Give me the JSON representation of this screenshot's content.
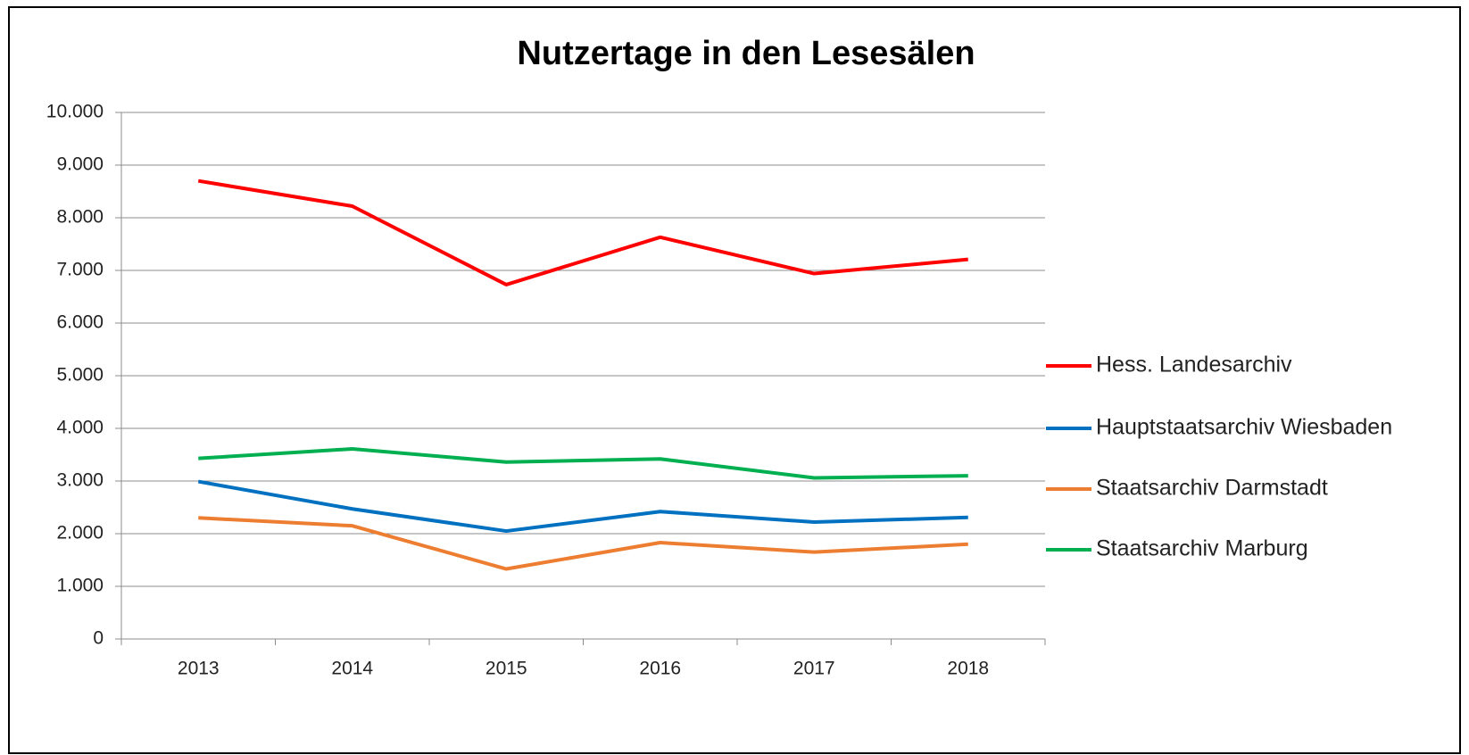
{
  "chart_data": {
    "type": "line",
    "title": "Nutzertage in den Lesesälen",
    "categories": [
      "2013",
      "2014",
      "2015",
      "2016",
      "2017",
      "2018"
    ],
    "series": [
      {
        "name": "Hess. Landesarchiv",
        "color": "#ff0000",
        "values": [
          8700,
          8220,
          6730,
          7630,
          6940,
          7210
        ]
      },
      {
        "name": "Hauptstaatsarchiv Wiesbaden",
        "color": "#0070c0",
        "values": [
          2990,
          2470,
          2050,
          2420,
          2220,
          2310
        ]
      },
      {
        "name": "Staatsarchiv Darmstadt",
        "color": "#ed7d31",
        "values": [
          2300,
          2150,
          1330,
          1830,
          1650,
          1800
        ]
      },
      {
        "name": "Staatsarchiv Marburg",
        "color": "#00b050",
        "values": [
          3430,
          3610,
          3360,
          3420,
          3060,
          3100
        ]
      }
    ],
    "ylim": [
      0,
      10000
    ],
    "yticks": [
      0,
      {
        "value": 1000,
        "label": "1.000"
      },
      {
        "value": 2000,
        "label": "2.000"
      },
      {
        "value": 3000,
        "label": "3.000"
      },
      {
        "value": 4000,
        "label": "4.000"
      },
      {
        "value": 5000,
        "label": "5.000"
      },
      {
        "value": 6000,
        "label": "6.000"
      },
      {
        "value": 7000,
        "label": "7.000"
      },
      {
        "value": 8000,
        "label": "8.000"
      },
      {
        "value": 9000,
        "label": "9.000"
      },
      {
        "value": 10000,
        "label": "10.000"
      }
    ],
    "grid": true,
    "legend": "right"
  }
}
